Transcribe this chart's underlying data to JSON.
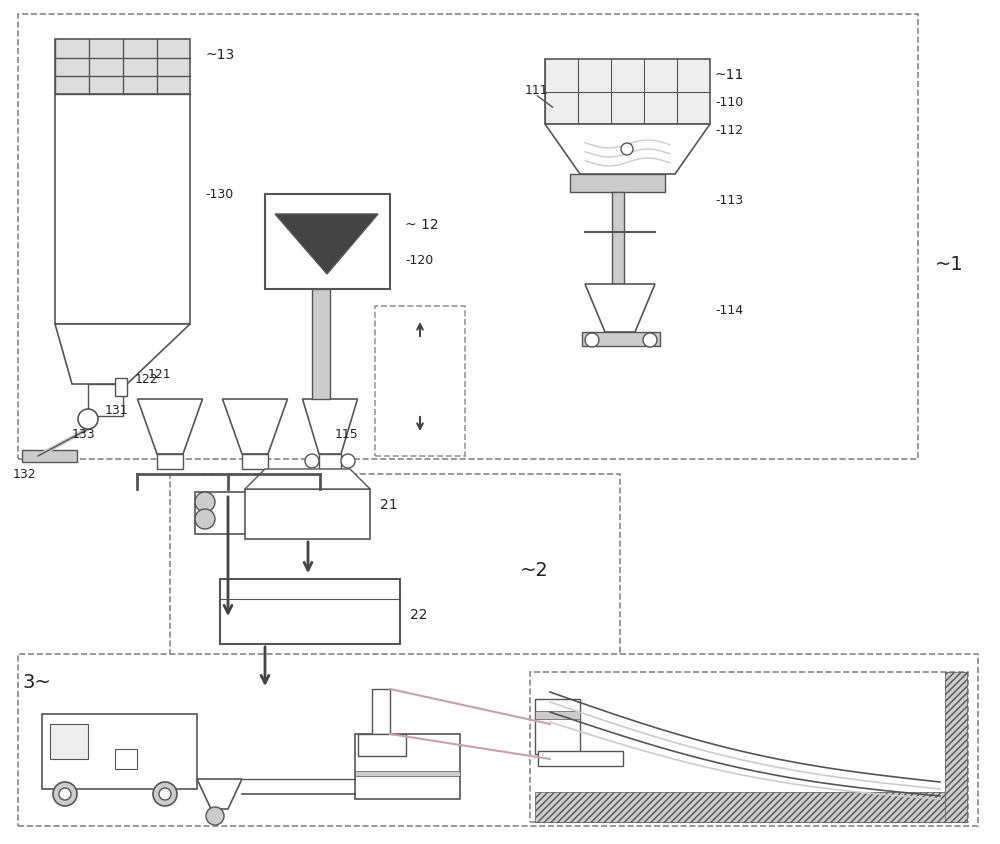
{
  "bg_color": "#ffffff",
  "line_color": "#555555",
  "dashed_color": "#999999",
  "label_color": "#222222",
  "accent_color": "#aaaaaa",
  "pink_color": "#d4a0a0",
  "light_gray": "#cccccc",
  "dark_gray": "#444444"
}
